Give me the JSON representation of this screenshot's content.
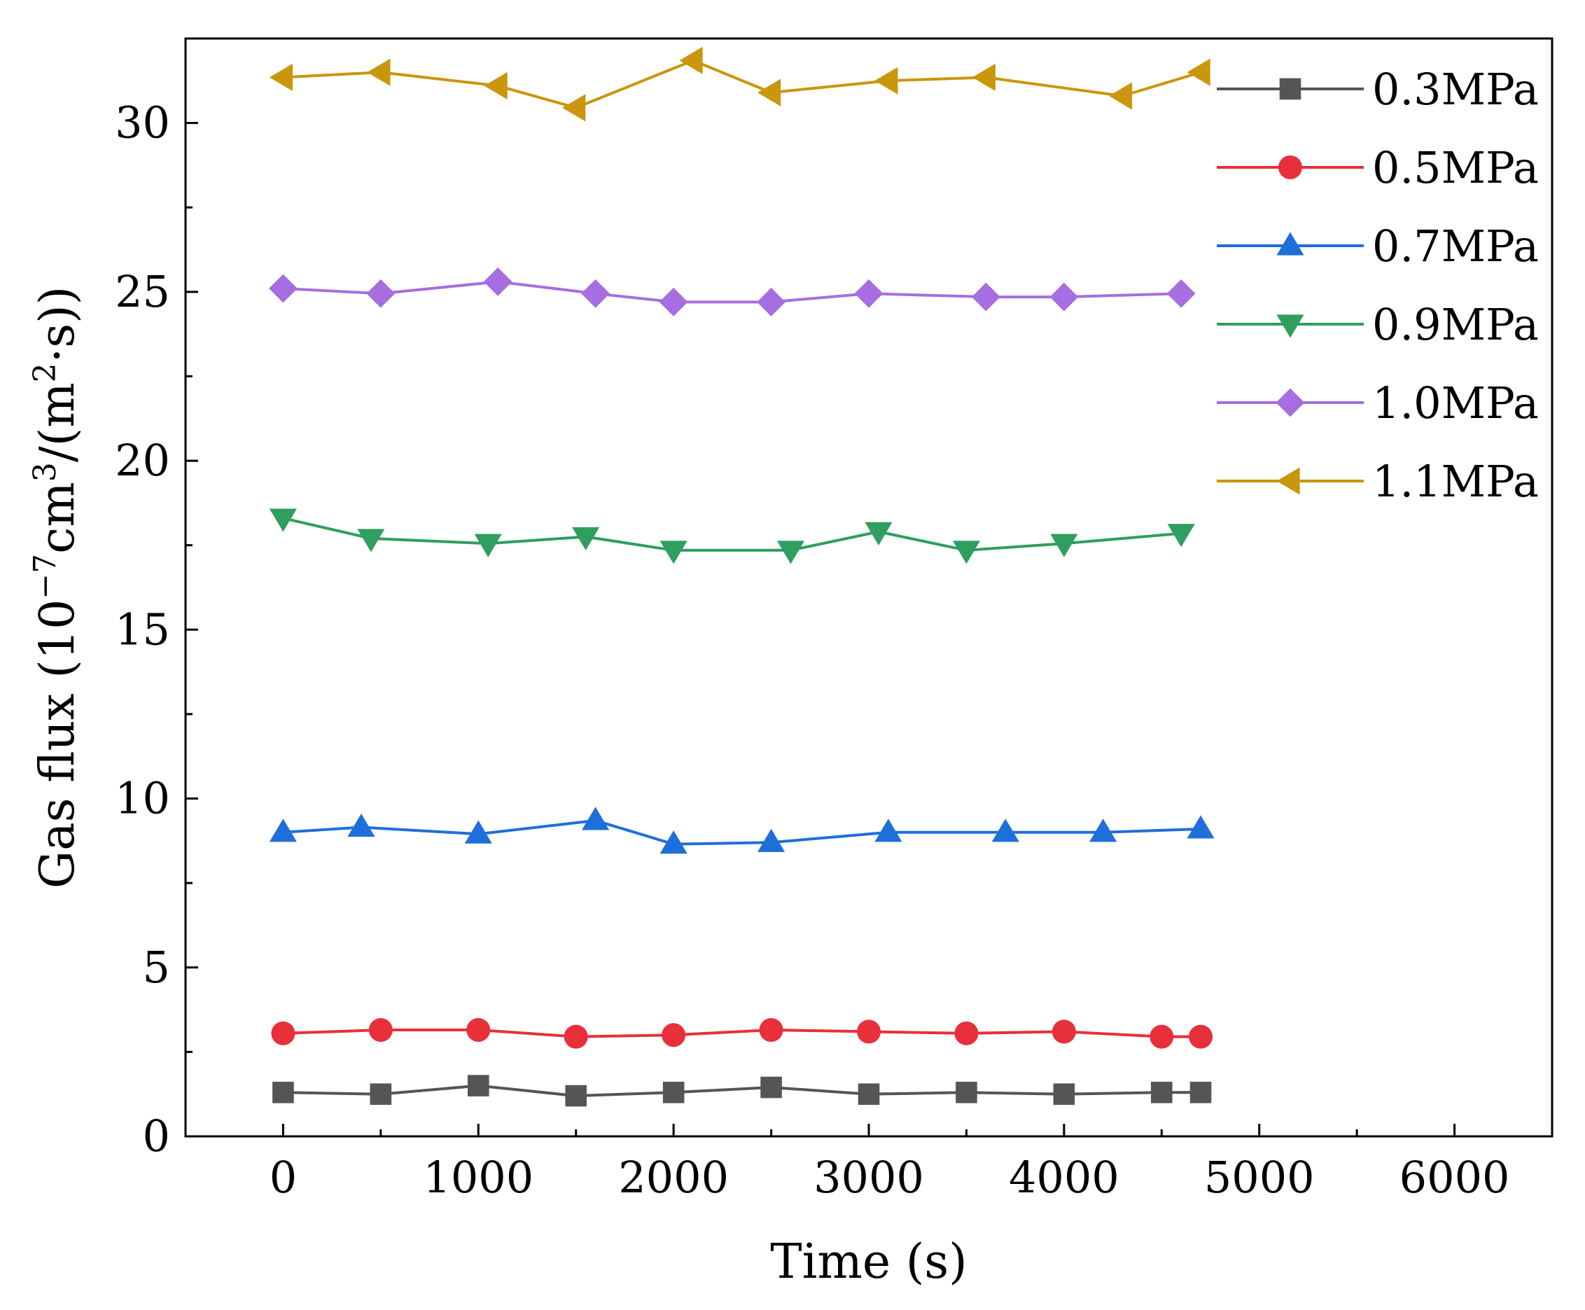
{
  "chart_data": {
    "type": "line",
    "title": "",
    "xlabel": "Time (s)",
    "ylabel": "Gas flux (10⁻⁷cm³/(m²·s))",
    "ylabel_parts": {
      "lead": "Gas flux (10",
      "exp1": "−7",
      "mid": "cm",
      "exp2": "3",
      "mid2": "/(m",
      "exp3": "2",
      "tail": "·s))"
    },
    "xlim": [
      -500,
      6500
    ],
    "ylim": [
      0,
      32.5
    ],
    "xticks": [
      0,
      1000,
      2000,
      3000,
      4000,
      5000,
      6000
    ],
    "yticks": [
      0,
      5,
      10,
      15,
      20,
      25,
      30
    ],
    "legend_position": "top-right",
    "grid": false,
    "series": [
      {
        "name": "0.3MPa",
        "color": "#555555",
        "marker": "square",
        "x": [
          0,
          500,
          1000,
          1500,
          2000,
          2500,
          3000,
          3500,
          4000,
          4500,
          4700
        ],
        "y": [
          1.3,
          1.25,
          1.5,
          1.2,
          1.3,
          1.45,
          1.25,
          1.3,
          1.25,
          1.3,
          1.3
        ]
      },
      {
        "name": "0.5MPa",
        "color": "#e8303a",
        "marker": "circle",
        "x": [
          0,
          500,
          1000,
          1500,
          2000,
          2500,
          3000,
          3500,
          4000,
          4500,
          4700
        ],
        "y": [
          3.05,
          3.15,
          3.15,
          2.95,
          3.0,
          3.15,
          3.1,
          3.05,
          3.1,
          2.95,
          2.95
        ]
      },
      {
        "name": "0.7MPa",
        "color": "#1e6fd9",
        "marker": "triangle-up",
        "x": [
          0,
          400,
          1000,
          1600,
          2000,
          2500,
          3100,
          3700,
          4200,
          4700
        ],
        "y": [
          9.0,
          9.15,
          8.95,
          9.35,
          8.65,
          8.7,
          9.0,
          9.0,
          9.0,
          9.1
        ]
      },
      {
        "name": "0.9MPa",
        "color": "#2f9e5e",
        "marker": "triangle-down",
        "x": [
          0,
          450,
          1050,
          1550,
          2000,
          2600,
          3050,
          3500,
          4000,
          4600
        ],
        "y": [
          18.3,
          17.7,
          17.55,
          17.75,
          17.35,
          17.35,
          17.9,
          17.35,
          17.55,
          17.85
        ]
      },
      {
        "name": "1.0MPa",
        "color": "#a66ee0",
        "marker": "diamond",
        "x": [
          0,
          500,
          1100,
          1600,
          2000,
          2500,
          3000,
          3600,
          4000,
          4600
        ],
        "y": [
          25.1,
          24.95,
          25.3,
          24.95,
          24.7,
          24.7,
          24.95,
          24.85,
          24.85,
          24.95
        ]
      },
      {
        "name": "1.1MPa",
        "color": "#c9960c",
        "marker": "triangle-left",
        "x": [
          0,
          500,
          1100,
          1500,
          2100,
          2500,
          3100,
          3600,
          4300,
          4700
        ],
        "y": [
          31.35,
          31.5,
          31.1,
          30.45,
          31.85,
          30.9,
          31.25,
          31.35,
          30.8,
          31.5
        ]
      }
    ]
  }
}
